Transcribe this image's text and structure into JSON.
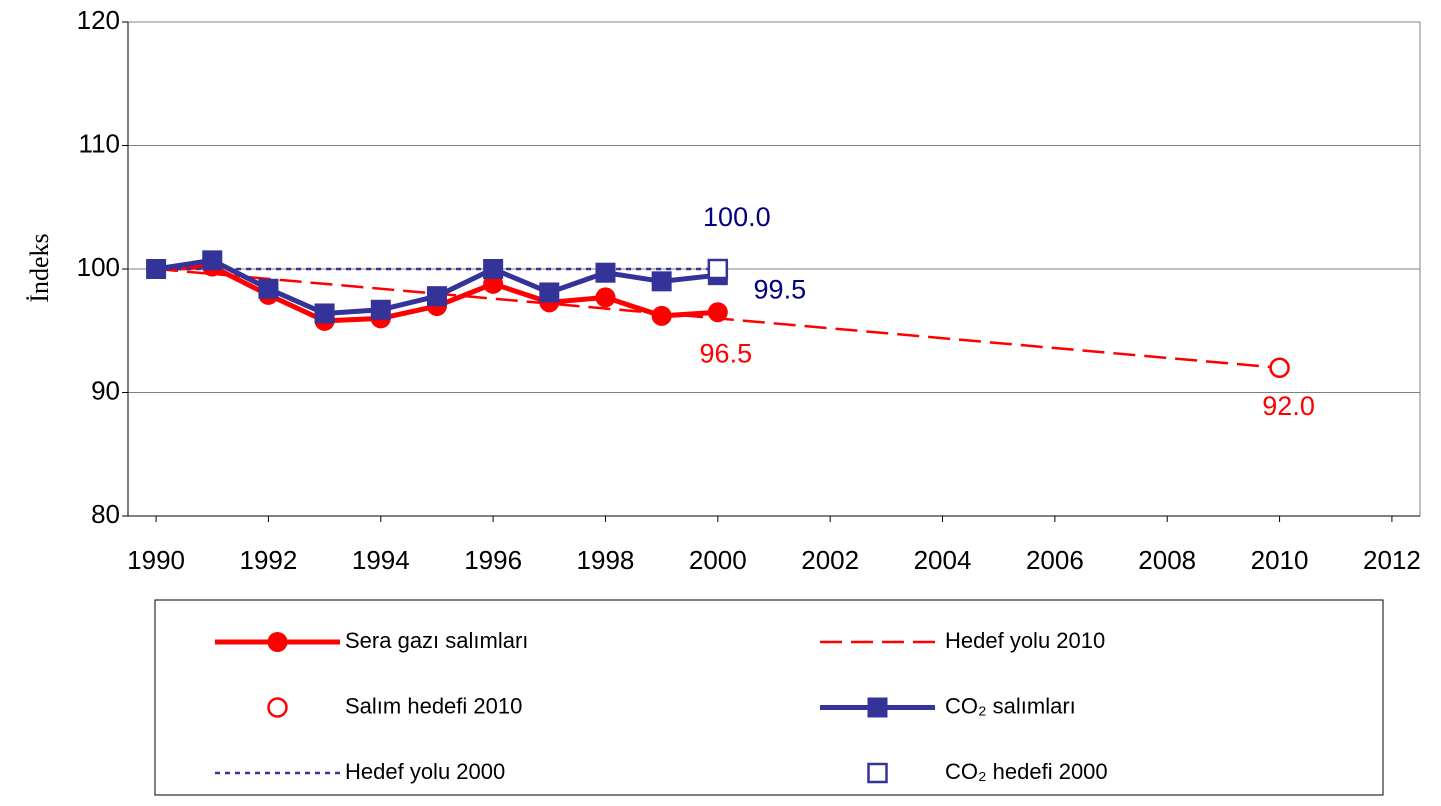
{
  "chart_data": {
    "type": "line",
    "ylabel": "İndeks",
    "xlim": [
      1989.5,
      2012.5
    ],
    "xticks": [
      1990,
      1992,
      1994,
      1996,
      1998,
      2000,
      2002,
      2004,
      2006,
      2008,
      2010,
      2012
    ],
    "ylim": [
      80,
      120
    ],
    "yticks": [
      80,
      90,
      100,
      110,
      120
    ],
    "grid": true,
    "legend": "bottom",
    "series": [
      {
        "name": "Sera gazı salımları",
        "color": "#ff0000",
        "line": "solid",
        "marker": "circle",
        "x": [
          1990,
          1991,
          1992,
          1993,
          1994,
          1995,
          1996,
          1997,
          1998,
          1999,
          2000
        ],
        "values": [
          100,
          100.2,
          97.9,
          95.8,
          96.0,
          97.0,
          98.8,
          97.3,
          97.7,
          96.2,
          96.5
        ],
        "value_labels": [
          null,
          null,
          null,
          null,
          null,
          null,
          null,
          null,
          null,
          null,
          "96.5"
        ]
      },
      {
        "name": "Hedef yolu 2010",
        "color": "#ff0000",
        "line": "dashed",
        "marker": "none",
        "x": [
          1990,
          2010
        ],
        "values": [
          100,
          92
        ]
      },
      {
        "name": "Salım hedefi 2010",
        "color": "#ff0000",
        "line": "none",
        "marker": "open-circle",
        "x": [
          2010
        ],
        "values": [
          92.0
        ],
        "value_labels": [
          "92.0"
        ]
      },
      {
        "name": "CO₂ salımları",
        "color": "#333399",
        "line": "solid",
        "marker": "square",
        "x": [
          1990,
          1991,
          1992,
          1993,
          1994,
          1995,
          1996,
          1997,
          1998,
          1999,
          2000
        ],
        "values": [
          100,
          100.7,
          98.4,
          96.4,
          96.7,
          97.8,
          100.0,
          98.1,
          99.7,
          99.0,
          99.5
        ],
        "value_labels": [
          null,
          null,
          null,
          null,
          null,
          null,
          null,
          null,
          null,
          null,
          "99.5"
        ]
      },
      {
        "name": "Hedef yolu 2000",
        "color": "#333399",
        "line": "dotted",
        "marker": "none",
        "x": [
          1990,
          2000
        ],
        "values": [
          100,
          100
        ]
      },
      {
        "name": "CO₂ hedefi 2000",
        "color": "#333399",
        "line": "none",
        "marker": "open-square",
        "x": [
          2000
        ],
        "values": [
          100.0
        ],
        "value_labels": [
          "100.0"
        ]
      }
    ]
  }
}
